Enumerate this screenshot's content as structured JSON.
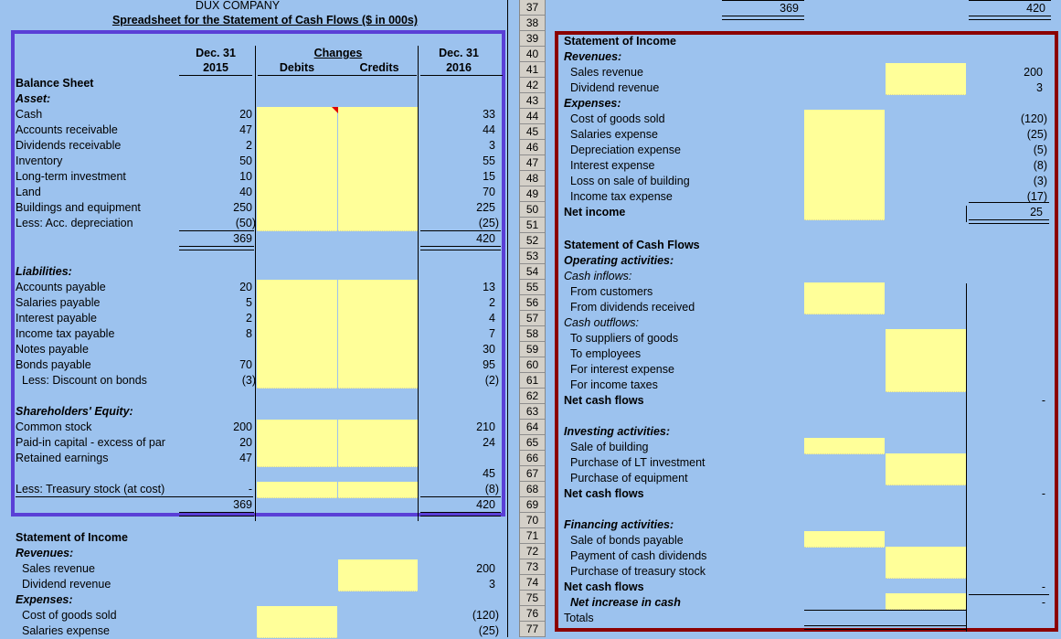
{
  "header": {
    "company": "DUX COMPANY",
    "subtitle": "Spreadsheet for the Statement of Cash Flows ($ in 000s)"
  },
  "columns": {
    "dec2015_top": "Dec. 31",
    "dec2015_bottom": "2015",
    "changes": "Changes",
    "debits": "Debits",
    "credits": "Credits",
    "dec2016_top": "Dec. 31",
    "dec2016_bottom": "2016"
  },
  "balance_sheet": {
    "title": "Balance Sheet",
    "assets_label": "Asset:",
    "assets": [
      {
        "label": "Cash",
        "y2015": "20",
        "y2016": "33"
      },
      {
        "label": "Accounts receivable",
        "y2015": "47",
        "y2016": "44"
      },
      {
        "label": "Dividends receivable",
        "y2015": "2",
        "y2016": "3"
      },
      {
        "label": "Inventory",
        "y2015": "50",
        "y2016": "55"
      },
      {
        "label": "Long-term investment",
        "y2015": "10",
        "y2016": "15"
      },
      {
        "label": "Land",
        "y2015": "40",
        "y2016": "70"
      },
      {
        "label": "Buildings and equipment",
        "y2015": "250",
        "y2016": "225"
      },
      {
        "label": "Less: Acc. depreciation",
        "y2015": "(50)",
        "y2016": "(25)"
      }
    ],
    "assets_total_2015": "369",
    "assets_total_2016": "420",
    "liabilities_label": "Liabilities:",
    "liabilities": [
      {
        "label": "Accounts payable",
        "y2015": "20",
        "y2016": "13"
      },
      {
        "label": "Salaries payable",
        "y2015": "5",
        "y2016": "2"
      },
      {
        "label": "Interest payable",
        "y2015": "2",
        "y2016": "4"
      },
      {
        "label": "Income tax payable",
        "y2015": "8",
        "y2016": "7"
      },
      {
        "label": "Notes payable",
        "y2015": "",
        "y2016": "30"
      },
      {
        "label": "Bonds payable",
        "y2015": "70",
        "y2016": "95"
      },
      {
        "label": "Less: Discount on bonds",
        "y2015": "(3)",
        "y2016": "(2)"
      }
    ],
    "equity_label": "Shareholders' Equity:",
    "equity": [
      {
        "label": "Common stock",
        "y2015": "200",
        "y2016": "210"
      },
      {
        "label": "Paid-in capital - excess of par",
        "y2015": "20",
        "y2016": "24"
      },
      {
        "label": "Retained earnings",
        "y2015": "47",
        "y2016": ""
      }
    ],
    "retained_2016": "45",
    "treasury_label": "Less: Treasury stock (at cost)",
    "treasury_2015": "-",
    "treasury_2016": "(8)",
    "le_total_2015": "369",
    "le_total_2016": "420"
  },
  "left_income": {
    "title": "Statement of Income",
    "revenues_label": "Revenues:",
    "sales_label": "Sales revenue",
    "sales_value": "200",
    "dividend_label": "Dividend revenue",
    "dividend_value": "3",
    "expenses_label": "Expenses:",
    "cogs_label": "Cost of goods sold",
    "cogs_value": "(120)",
    "salaries_label": "Salaries expense",
    "salaries_value": "(25)"
  },
  "row_numbers": [
    "37",
    "38",
    "39",
    "40",
    "41",
    "42",
    "43",
    "44",
    "45",
    "46",
    "47",
    "48",
    "49",
    "50",
    "51",
    "52",
    "53",
    "54",
    "55",
    "56",
    "57",
    "58",
    "59",
    "60",
    "61",
    "62",
    "63",
    "64",
    "65",
    "66",
    "67",
    "68",
    "69",
    "70",
    "71",
    "72",
    "73",
    "74",
    "75",
    "76",
    "77"
  ],
  "right_top": {
    "total_a": "369",
    "total_b": "420"
  },
  "income": {
    "title": "Statement of Income",
    "revenues_label": "Revenues:",
    "sales_label": "Sales revenue",
    "sales_value": "200",
    "dividend_label": "Dividend revenue",
    "dividend_value": "3",
    "expenses_label": "Expenses:",
    "expenses": [
      {
        "label": "Cost of goods sold",
        "value": "(120)"
      },
      {
        "label": "Salaries expense",
        "value": "(25)"
      },
      {
        "label": "Depreciation expense",
        "value": "(5)"
      },
      {
        "label": "Interest expense",
        "value": "(8)"
      },
      {
        "label": "Loss on sale of building",
        "value": "(3)"
      },
      {
        "label": "Income tax expense",
        "value": "(17)"
      }
    ],
    "net_income_label": "Net income",
    "net_income_value": "25"
  },
  "cash_flows": {
    "title": "Statement of Cash Flows",
    "operating_label": "Operating activities:",
    "inflows_label": "Cash inflows:",
    "from_customers": "From customers",
    "from_dividends": "From dividends received",
    "outflows_label": "Cash outflows:",
    "to_suppliers": "To suppliers of goods",
    "to_employees": "To employees",
    "for_interest": "For interest expense",
    "for_taxes": "For income taxes",
    "net_cash_flows": "Net cash flows",
    "net_operating_value": "-",
    "investing_label": "Investing activities:",
    "sale_building": "Sale of building",
    "purchase_lt": "Purchase of LT investment",
    "purchase_equip": "Purchase of equipment",
    "net_investing_label": "Net cash flows",
    "net_investing_value": "-",
    "financing_label": "Financing activities:",
    "sale_bonds": "Sale of bonds payable",
    "payment_dividends": "Payment of cash dividends",
    "purchase_treasury": "Purchase of treasury stock",
    "net_financing_label": "Net cash flows",
    "net_financing_value": "-",
    "net_increase_label": "Net increase in cash",
    "net_increase_value": "-",
    "totals_label": "Totals"
  },
  "colors": {
    "background": "#9cc2ee",
    "input_cells": "#ffff99",
    "blue_frame": "#5a3fd6",
    "red_frame": "#8b0000"
  }
}
